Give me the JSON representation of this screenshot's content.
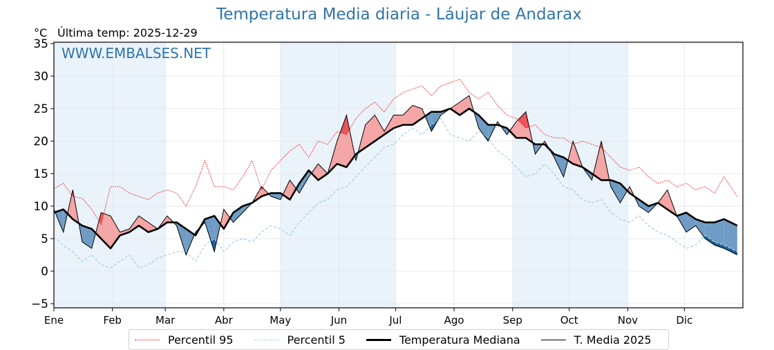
{
  "title": "Temperatura Media diaria - Láujar de Andarax",
  "unit_label": "°C",
  "subtitle": "Última temp: 2025-12-29",
  "watermark": "WWW.EMBALSES.NET",
  "colors": {
    "p95": "#ff0000",
    "p5": "#a6d4e8",
    "median": "#000000",
    "mean2025": "#000000",
    "above_fill": "#f4a5a5",
    "above_p95_fill": "#e8555a",
    "below_fill": "#6f9cc4",
    "below_p5_fill": "#1f5f99",
    "band": "#eaf2fa",
    "title": "#2f74a8"
  },
  "legend": [
    {
      "label": "Percentil 95",
      "style": "dotted",
      "key": "p95"
    },
    {
      "label": "Percentil 5",
      "style": "dashed",
      "key": "p5"
    },
    {
      "label": "Temperatura Mediana",
      "style": "thick",
      "key": "median"
    },
    {
      "label": "T. Media 2025",
      "style": "thin",
      "key": "mean2025"
    }
  ],
  "chart_data": {
    "type": "line",
    "title": "Temperatura Media diaria - Láujar de Andarax",
    "xlabel": "",
    "ylabel": "°C",
    "ylim": [
      -6,
      35.5
    ],
    "yticks": [
      -5,
      0,
      5,
      10,
      15,
      20,
      25,
      30,
      35
    ],
    "ytick_labels": [
      "−5",
      "0",
      "5",
      "10",
      "15",
      "20",
      "25",
      "30",
      "35"
    ],
    "xlim_days": [
      0,
      365
    ],
    "month_ticks": [
      {
        "label": "Ene",
        "day": 0
      },
      {
        "label": "Feb",
        "day": 31
      },
      {
        "label": "Mar",
        "day": 59
      },
      {
        "label": "Abr",
        "day": 90
      },
      {
        "label": "May",
        "day": 120
      },
      {
        "label": "Jun",
        "day": 151
      },
      {
        "label": "Jul",
        "day": 181
      },
      {
        "label": "Ago",
        "day": 212
      },
      {
        "label": "Sep",
        "day": 243
      },
      {
        "label": "Oct",
        "day": 273
      },
      {
        "label": "Nov",
        "day": 304
      },
      {
        "label": "Dic",
        "day": 334
      }
    ],
    "grid": true,
    "legend_position": "bottom",
    "x_days": [
      0,
      5,
      10,
      15,
      20,
      25,
      30,
      35,
      40,
      45,
      50,
      55,
      60,
      65,
      70,
      75,
      80,
      85,
      90,
      95,
      100,
      105,
      110,
      115,
      120,
      125,
      130,
      135,
      140,
      145,
      150,
      155,
      160,
      165,
      170,
      175,
      180,
      185,
      190,
      195,
      200,
      205,
      210,
      215,
      220,
      225,
      230,
      235,
      240,
      245,
      250,
      255,
      260,
      265,
      270,
      275,
      280,
      285,
      290,
      295,
      300,
      305,
      310,
      315,
      320,
      325,
      330,
      335,
      340,
      345,
      350,
      355,
      362
    ],
    "series": [
      {
        "name": "Percentil 95",
        "key": "p95",
        "values": [
          12.7,
          13.5,
          11.5,
          11.2,
          9.5,
          7.2,
          13.0,
          13.0,
          12.0,
          11.5,
          11.0,
          12.0,
          12.5,
          12.0,
          10.0,
          13.0,
          17.0,
          13.0,
          13.0,
          12.5,
          14.5,
          17.0,
          12.5,
          15.5,
          17.0,
          18.5,
          19.5,
          17.5,
          20.0,
          19.5,
          21.5,
          21.0,
          23.5,
          25.0,
          26.0,
          24.5,
          26.5,
          27.5,
          28.0,
          28.5,
          27.0,
          28.5,
          29.0,
          29.5,
          27.5,
          26.5,
          27.5,
          25.5,
          24.0,
          23.5,
          22.0,
          22.5,
          21.0,
          20.5,
          20.5,
          19.5,
          20.0,
          19.5,
          19.0,
          17.5,
          16.0,
          15.5,
          16.0,
          14.5,
          13.5,
          14.0,
          13.0,
          13.5,
          12.5,
          13.0,
          12.0,
          14.5,
          11.5
        ]
      },
      {
        "name": "Percentil 5",
        "key": "p5",
        "values": [
          5.2,
          4.0,
          3.0,
          1.5,
          2.5,
          1.0,
          0.5,
          1.5,
          2.5,
          0.5,
          1.0,
          2.0,
          2.5,
          3.0,
          3.0,
          1.5,
          4.0,
          5.0,
          3.0,
          4.5,
          5.0,
          4.5,
          6.0,
          7.0,
          6.5,
          5.5,
          7.5,
          9.0,
          10.5,
          11.0,
          12.5,
          13.0,
          14.5,
          16.0,
          17.5,
          19.0,
          19.5,
          21.0,
          22.0,
          21.0,
          22.5,
          23.5,
          21.0,
          20.5,
          20.0,
          21.5,
          20.5,
          18.5,
          17.5,
          16.0,
          14.5,
          15.0,
          16.5,
          15.0,
          13.0,
          12.5,
          11.0,
          10.5,
          11.0,
          9.0,
          8.0,
          7.5,
          8.5,
          7.0,
          6.0,
          5.5,
          4.5,
          3.5,
          4.0,
          5.5,
          4.5,
          4.0,
          3.0
        ]
      },
      {
        "name": "Temperatura Mediana",
        "key": "median",
        "values": [
          9.0,
          9.5,
          8.0,
          7.0,
          6.5,
          5.0,
          3.5,
          5.5,
          6.0,
          7.0,
          6.0,
          6.5,
          7.5,
          7.5,
          6.5,
          5.5,
          8.0,
          8.5,
          6.5,
          9.0,
          10.0,
          10.5,
          11.5,
          12.0,
          12.0,
          11.0,
          13.5,
          15.5,
          14.0,
          15.0,
          16.5,
          16.0,
          18.0,
          19.0,
          20.0,
          21.0,
          22.0,
          22.5,
          22.5,
          23.5,
          24.5,
          24.5,
          25.0,
          24.0,
          25.0,
          24.0,
          22.5,
          22.5,
          22.0,
          20.5,
          20.5,
          19.5,
          19.5,
          18.0,
          17.5,
          16.5,
          16.0,
          15.0,
          14.0,
          14.0,
          13.5,
          12.0,
          11.0,
          10.0,
          10.5,
          9.5,
          8.5,
          9.0,
          8.0,
          7.5,
          7.5,
          8.0,
          7.0
        ]
      },
      {
        "name": "T. Media 2025",
        "key": "mean2025",
        "values": [
          9.5,
          6.0,
          12.5,
          4.5,
          3.5,
          9.0,
          8.5,
          6.0,
          6.5,
          8.5,
          7.5,
          6.5,
          8.5,
          7.0,
          2.5,
          6.0,
          7.5,
          3.0,
          9.5,
          7.5,
          9.0,
          10.5,
          13.0,
          11.5,
          11.0,
          14.0,
          12.0,
          14.5,
          16.5,
          15.0,
          20.0,
          24.0,
          17.0,
          22.5,
          24.0,
          21.5,
          24.0,
          24.0,
          25.5,
          25.0,
          21.5,
          24.0,
          25.0,
          26.0,
          27.0,
          22.0,
          20.0,
          23.0,
          21.0,
          23.0,
          24.5,
          18.0,
          20.0,
          17.5,
          14.5,
          20.0,
          16.0,
          14.0,
          20.0,
          13.0,
          10.5,
          13.0,
          10.0,
          9.0,
          10.5,
          12.5,
          8.5,
          6.0,
          7.0,
          5.0,
          4.0,
          3.5,
          2.5
        ]
      }
    ]
  }
}
